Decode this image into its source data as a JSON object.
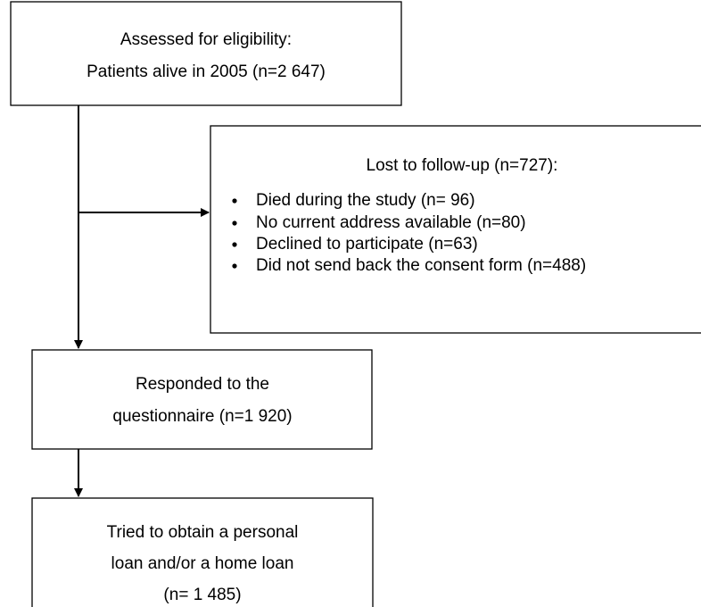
{
  "nodes": [
    {
      "lines": [
        "Assessed for eligibility:",
        "Patients alive in 2005 (n=2 647)"
      ]
    },
    {
      "title": "Lost to follow-up (n=727):",
      "items": [
        "Died during the study (n= 96)",
        "No current address available (n=80)",
        "Declined to participate (n=63)",
        "Did not send back the consent form (n=488)"
      ]
    },
    {
      "lines": [
        "Responded to the",
        "questionnaire (n=1 920)"
      ]
    },
    {
      "lines": [
        "Tried to obtain a personal",
        "loan and/or a home loan",
        "(n= 1 485)"
      ]
    }
  ]
}
